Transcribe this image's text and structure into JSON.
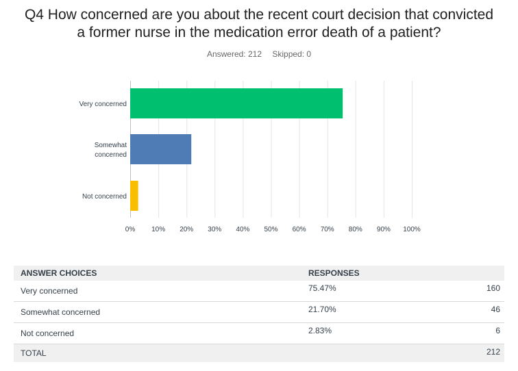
{
  "question": {
    "title_line1": "Q4 How concerned are you about the recent court decision that convicted",
    "title_line2": "a former nurse in the medication error death of a patient?",
    "answered": "Answered: 212",
    "skipped": "Skipped: 0"
  },
  "chart_data": {
    "type": "bar",
    "orientation": "horizontal",
    "categories": [
      "Very concerned",
      "Somewhat concerned",
      "Not concerned"
    ],
    "category_lines": [
      [
        "Very concerned"
      ],
      [
        "Somewhat",
        "concerned"
      ],
      [
        "Not concerned"
      ]
    ],
    "values": [
      75.47,
      21.7,
      2.83
    ],
    "colors": [
      "#00bf6f",
      "#507cb6",
      "#f9be00"
    ],
    "xlim": [
      0,
      100
    ],
    "xticks": [
      "0%",
      "10%",
      "20%",
      "30%",
      "40%",
      "50%",
      "60%",
      "70%",
      "80%",
      "90%",
      "100%"
    ],
    "grid": true
  },
  "table": {
    "headers": [
      "ANSWER CHOICES",
      "RESPONSES"
    ],
    "rows": [
      {
        "choice": "Very concerned",
        "percent": "75.47%",
        "count": "160"
      },
      {
        "choice": "Somewhat concerned",
        "percent": "21.70%",
        "count": "46"
      },
      {
        "choice": "Not concerned",
        "percent": "2.83%",
        "count": "6"
      }
    ],
    "total_label": "TOTAL",
    "total_count": "212"
  }
}
